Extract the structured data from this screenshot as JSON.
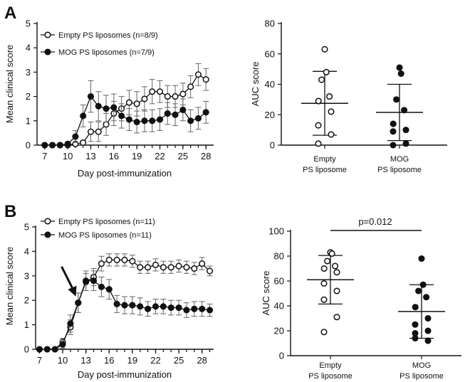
{
  "panels": {
    "A": {
      "letter": "A"
    },
    "B": {
      "letter": "B"
    }
  },
  "chart_data": [
    {
      "id": "A-line",
      "type": "line",
      "ylabel": "Mean clinical score",
      "xlabel": "Day post-immunization",
      "ylim": [
        0,
        5
      ],
      "yticks": [
        0,
        1,
        2,
        3,
        4,
        5
      ],
      "xlim": [
        6,
        29
      ],
      "xticks": [
        7,
        10,
        13,
        16,
        19,
        22,
        25,
        28
      ],
      "series": [
        {
          "name": "Empty PS liposomes (n=8/9)",
          "marker": "open",
          "x": [
            7,
            8,
            9,
            10,
            11,
            12,
            13,
            14,
            15,
            16,
            17,
            18,
            19,
            20,
            21,
            22,
            23,
            24,
            25,
            26,
            27,
            28
          ],
          "y": [
            0,
            0,
            0,
            0,
            0.05,
            0.1,
            0.55,
            0.55,
            0.85,
            1.3,
            1.5,
            1.75,
            1.7,
            1.9,
            2.2,
            2.2,
            2.0,
            2.0,
            2.1,
            2.4,
            2.9,
            2.7
          ],
          "err": [
            0,
            0,
            0,
            0,
            0.05,
            0.1,
            0.4,
            0.4,
            0.45,
            0.5,
            0.5,
            0.5,
            0.5,
            0.5,
            0.5,
            0.45,
            0.45,
            0.45,
            0.45,
            0.45,
            0.45,
            0.45
          ]
        },
        {
          "name": "MOG PS liposomes (n=7/9)",
          "marker": "filled",
          "x": [
            7,
            8,
            9,
            10,
            11,
            12,
            13,
            14,
            15,
            16,
            17,
            18,
            19,
            20,
            21,
            22,
            23,
            24,
            25,
            26,
            27,
            28
          ],
          "y": [
            0,
            0,
            0,
            0.05,
            0.35,
            1.2,
            2.0,
            1.6,
            1.5,
            1.55,
            1.2,
            1.05,
            0.95,
            1.0,
            1.0,
            1.05,
            1.3,
            1.25,
            1.45,
            1.0,
            1.1,
            1.35
          ],
          "err": [
            0,
            0,
            0,
            0.05,
            0.25,
            0.45,
            0.65,
            0.6,
            0.55,
            0.55,
            0.5,
            0.45,
            0.45,
            0.45,
            0.45,
            0.45,
            0.45,
            0.45,
            0.45,
            0.45,
            0.45,
            0.45
          ]
        }
      ]
    },
    {
      "id": "A-scatter",
      "type": "scatter",
      "ylabel": "AUC score",
      "ylim": [
        0,
        80
      ],
      "yticks": [
        0,
        20,
        40,
        60,
        80
      ],
      "groups": [
        {
          "label_lines": [
            "Empty",
            "PS liposome"
          ],
          "marker": "open",
          "values": [
            63,
            48,
            43,
            32,
            29,
            22,
            13,
            7,
            1
          ],
          "mean": 27.5,
          "sd": 21
        },
        {
          "label_lines": [
            "MOG",
            "PS liposome"
          ],
          "marker": "filled",
          "values": [
            51,
            47,
            30,
            23,
            14,
            10,
            9,
            1,
            0
          ],
          "mean": 21.5,
          "sd": 18.5
        }
      ]
    },
    {
      "id": "B-line",
      "type": "line",
      "ylabel": "Mean clinical score",
      "xlabel": "Day post-immunization",
      "ylim": [
        0,
        5
      ],
      "yticks": [
        0,
        1,
        2,
        3,
        4,
        5
      ],
      "xlim": [
        6.5,
        29.5
      ],
      "xticks": [
        7,
        10,
        13,
        16,
        19,
        22,
        25,
        28
      ],
      "xtick_marks": [
        7,
        8,
        9,
        10,
        11,
        12,
        13,
        14,
        15,
        16,
        17,
        18,
        19,
        20,
        21,
        22,
        23,
        24,
        25,
        26,
        27,
        28,
        29
      ],
      "series": [
        {
          "name": "Empty PS liposomes (n=11)",
          "marker": "open",
          "x": [
            7,
            8,
            9,
            10,
            11,
            12,
            13,
            14,
            15,
            16,
            17,
            18,
            19,
            20,
            21,
            22,
            23,
            24,
            25,
            26,
            27,
            28,
            29
          ],
          "y": [
            0,
            0,
            0,
            0.3,
            0.9,
            1.9,
            2.75,
            2.95,
            3.5,
            3.65,
            3.65,
            3.65,
            3.6,
            3.35,
            3.35,
            3.45,
            3.35,
            3.35,
            3.4,
            3.35,
            3.3,
            3.5,
            3.2
          ],
          "err": [
            0,
            0,
            0,
            0.15,
            0.3,
            0.4,
            0.35,
            0.35,
            0.3,
            0.25,
            0.25,
            0.25,
            0.25,
            0.25,
            0.25,
            0.25,
            0.25,
            0.25,
            0.25,
            0.25,
            0.25,
            0.25,
            0.2
          ]
        },
        {
          "name": "MOG PS liposomes (n=11)",
          "marker": "filled",
          "x": [
            7,
            8,
            9,
            10,
            11,
            12,
            13,
            14,
            15,
            16,
            17,
            18,
            19,
            20,
            21,
            22,
            23,
            24,
            25,
            26,
            27,
            28,
            29
          ],
          "y": [
            0,
            0,
            0,
            0.2,
            1.05,
            1.9,
            2.8,
            2.8,
            2.55,
            2.45,
            1.85,
            1.8,
            1.8,
            1.75,
            1.65,
            1.75,
            1.75,
            1.7,
            1.7,
            1.6,
            1.65,
            1.65,
            1.6
          ],
          "err": [
            0,
            0,
            0,
            0.15,
            0.35,
            0.4,
            0.4,
            0.4,
            0.4,
            0.4,
            0.35,
            0.35,
            0.35,
            0.35,
            0.3,
            0.3,
            0.3,
            0.3,
            0.3,
            0.3,
            0.3,
            0.3,
            0.25
          ]
        }
      ],
      "annotation": {
        "type": "arrow",
        "target_day": 11.7,
        "target_score": 2.1
      }
    },
    {
      "id": "B-scatter",
      "type": "scatter",
      "ylabel": "AUC score",
      "ylim": [
        0,
        100
      ],
      "yticks": [
        0,
        20,
        40,
        60,
        80,
        100
      ],
      "pvalue": "p=0.012",
      "groups": [
        {
          "label_lines": [
            "Empty",
            "PS liposome"
          ],
          "marker": "open",
          "values": [
            83,
            82,
            76,
            72,
            70,
            67,
            58,
            52,
            45,
            31,
            19
          ],
          "mean": 61,
          "sd": 19.5
        },
        {
          "label_lines": [
            "MOG",
            "PS liposome"
          ],
          "marker": "filled",
          "values": [
            78,
            57,
            52,
            47,
            39,
            30,
            25,
            20,
            14,
            12,
            18
          ],
          "mean": 35.5,
          "sd": 21.5
        }
      ]
    }
  ]
}
